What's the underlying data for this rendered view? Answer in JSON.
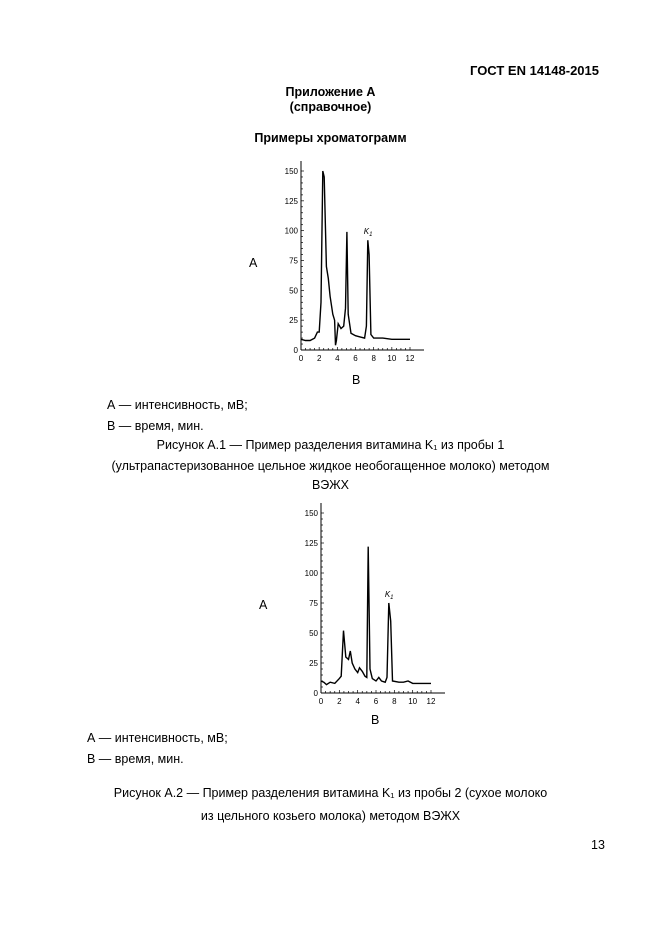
{
  "header": {
    "standard": "ГОСТ EN 14148-2015"
  },
  "title": {
    "line1": "Приложение А",
    "line2": "(справочное)",
    "section": "Примеры хроматограмм"
  },
  "figures": [
    {
      "legend_a": "А — интенсивность, мВ;",
      "legend_b": "В — время, мин.",
      "caption": [
        "Рисунок А.1 — Пример разделения витамина K₁ из пробы 1",
        "(ультрапастеризованное цельное жидкое необогащенное молоко) методом",
        "ВЭЖХ"
      ]
    },
    {
      "legend_a": "А — интенсивность, мВ;",
      "legend_b": "В — время, мин.",
      "caption": [
        "Рисунок А.2 — Пример разделения витамина K₁ из пробы 2 (сухое молоко",
        "из цельного козьего молока) методом ВЭЖХ"
      ]
    }
  ],
  "page_number": "13",
  "chart_data": [
    {
      "type": "line",
      "xlabel": "В",
      "ylabel": "А",
      "xlim": [
        0,
        12
      ],
      "ylim": [
        0,
        150
      ],
      "xticks": [
        0,
        2,
        4,
        6,
        8,
        10,
        12
      ],
      "yticks": [
        0,
        25,
        50,
        75,
        100,
        125,
        150
      ],
      "annotation": "K1",
      "annotation_at": [
        7.35,
        92
      ],
      "color": "#000000",
      "x": [
        0,
        0.5,
        1,
        1.5,
        1.8,
        2.0,
        2.2,
        2.4,
        2.55,
        2.8,
        3.0,
        3.2,
        3.5,
        3.7,
        3.8,
        3.9,
        4.1,
        4.4,
        4.7,
        4.9,
        5.05,
        5.2,
        5.5,
        6,
        6.5,
        7.0,
        7.2,
        7.35,
        7.5,
        7.7,
        8,
        9,
        10,
        11,
        12
      ],
      "y": [
        9,
        8,
        8,
        10,
        15,
        15,
        40,
        150,
        145,
        70,
        60,
        45,
        30,
        25,
        4,
        8,
        22,
        18,
        20,
        35,
        99,
        30,
        14,
        12,
        11,
        10,
        20,
        92,
        80,
        13,
        10,
        10,
        9,
        9,
        9
      ]
    },
    {
      "type": "line",
      "xlabel": "В",
      "ylabel": "А",
      "xlim": [
        0,
        12
      ],
      "ylim": [
        0,
        150
      ],
      "xticks": [
        0,
        2,
        4,
        6,
        8,
        10,
        12
      ],
      "yticks": [
        0,
        25,
        50,
        75,
        100,
        125,
        150
      ],
      "annotation": "K1",
      "annotation_at": [
        7.4,
        75
      ],
      "color": "#000000",
      "x": [
        0,
        0.3,
        0.6,
        1,
        1.5,
        2,
        2.2,
        2.45,
        2.7,
        3.0,
        3.2,
        3.4,
        3.7,
        4.0,
        4.2,
        4.5,
        4.8,
        5.0,
        5.15,
        5.35,
        5.6,
        6,
        6.3,
        6.6,
        7.0,
        7.2,
        7.4,
        7.6,
        7.8,
        8.5,
        9,
        9.5,
        10,
        11,
        12
      ],
      "y": [
        10,
        9,
        7,
        9,
        8,
        12,
        14,
        52,
        30,
        28,
        35,
        25,
        20,
        17,
        21,
        18,
        14,
        13,
        122,
        20,
        12,
        10,
        13,
        10,
        9,
        13,
        75,
        60,
        10,
        9,
        9,
        10,
        8,
        8,
        8
      ]
    }
  ]
}
